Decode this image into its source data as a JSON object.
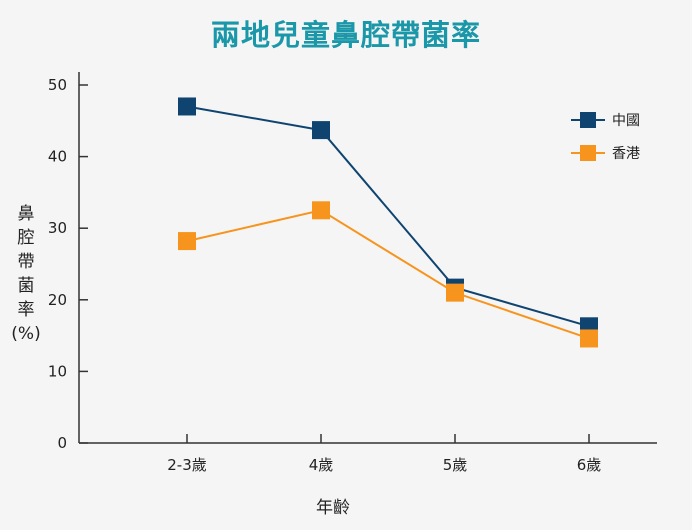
{
  "chart_data": {
    "type": "line",
    "title": "兩地兒童鼻腔帶菌率",
    "xlabel": "年齡",
    "ylabel": "鼻腔帶菌率(%)",
    "ylabel_lines": [
      "鼻",
      "腔",
      "帶",
      "菌",
      "率",
      "(%)"
    ],
    "categories": [
      "2-3歲",
      "4歲",
      "5歲",
      "6歲"
    ],
    "ylim": [
      0,
      50
    ],
    "yticks": [
      0,
      10,
      20,
      30,
      40,
      50
    ],
    "grid": false,
    "legend_position": "top-right",
    "series": [
      {
        "name": "中國",
        "color": "#0f4470",
        "values": [
          47,
          43.7,
          21.7,
          16.3
        ]
      },
      {
        "name": "香港",
        "color": "#f7941d",
        "values": [
          28.2,
          32.5,
          21,
          14.6
        ]
      }
    ]
  }
}
